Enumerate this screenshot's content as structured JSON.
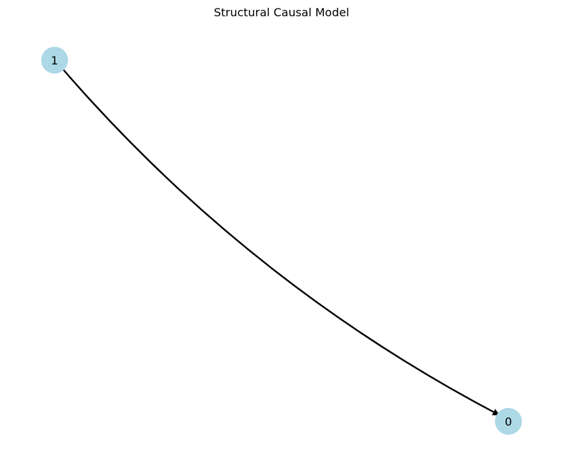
{
  "title": "Structural Causal Model",
  "node_color": "#add8e6",
  "edge_color": "#000000",
  "nodes": [
    {
      "id": "1",
      "label": "1"
    },
    {
      "id": "0",
      "label": "0"
    }
  ],
  "edges": [
    {
      "from": "1",
      "to": "0"
    }
  ]
}
